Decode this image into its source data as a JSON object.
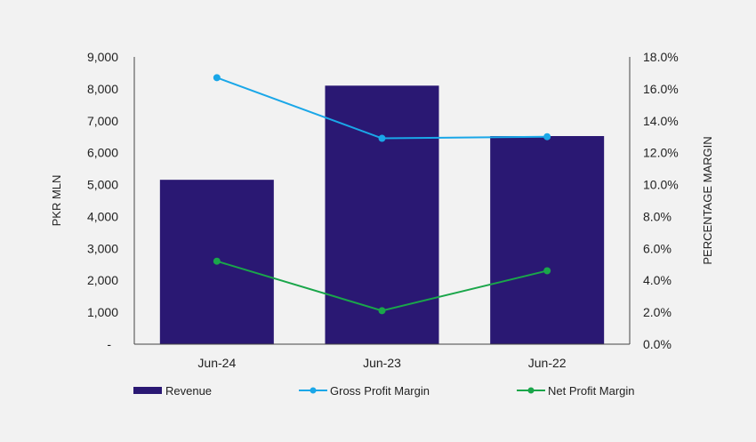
{
  "chart_data": {
    "type": "bar",
    "categories": [
      "Jun-24",
      "Jun-23",
      "Jun-22"
    ],
    "series": [
      {
        "name": "Revenue",
        "type": "bar",
        "axis": "left",
        "values": [
          5150,
          8100,
          6520
        ],
        "color": "#2a1873"
      },
      {
        "name": "Gross Profit Margin",
        "type": "line",
        "axis": "right",
        "values": [
          16.7,
          12.9,
          13.0
        ],
        "color": "#1aa7e8"
      },
      {
        "name": "Net Profit Margin",
        "type": "line",
        "axis": "right",
        "values": [
          5.2,
          2.1,
          4.6
        ],
        "color": "#1aa64a"
      }
    ],
    "ylabel": "PKR MLN",
    "y2label": "PERCENTAGE MARGIN",
    "ylim": [
      0,
      9000
    ],
    "y2lim": [
      0,
      18
    ],
    "yticks": [
      "-",
      "1,000",
      "2,000",
      "3,000",
      "4,000",
      "5,000",
      "6,000",
      "7,000",
      "8,000",
      "9,000"
    ],
    "y2ticks": [
      "0.0%",
      "2.0%",
      "4.0%",
      "6.0%",
      "8.0%",
      "10.0%",
      "12.0%",
      "14.0%",
      "16.0%",
      "18.0%"
    ],
    "grid": false,
    "legend_position": "bottom"
  }
}
